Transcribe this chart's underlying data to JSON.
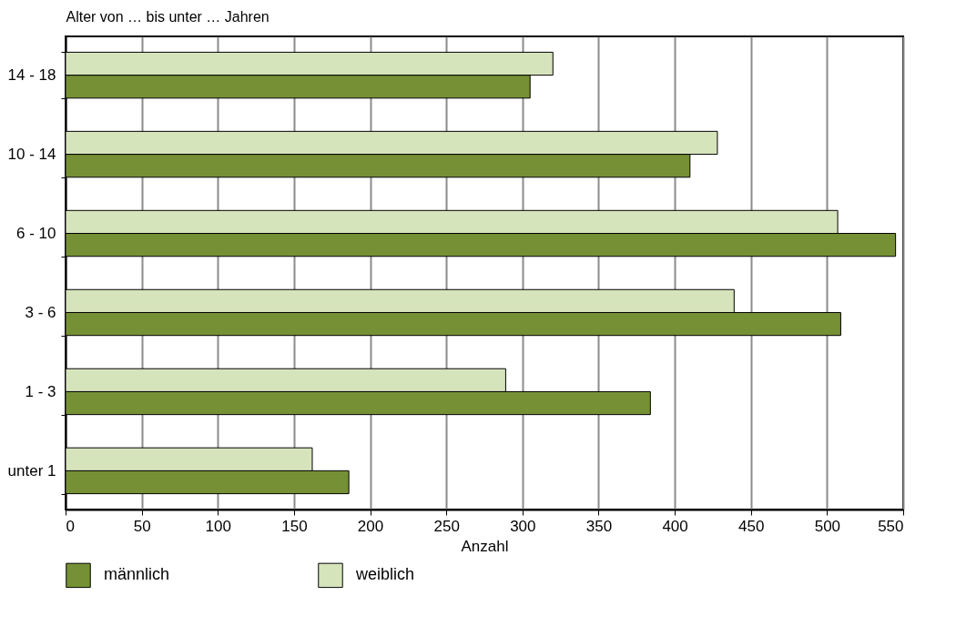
{
  "chart_data": {
    "type": "bar",
    "orientation": "horizontal",
    "ylabel": "Alter von … bis unter … Jahren",
    "xlabel": "Anzahl",
    "categories": [
      "14 - 18",
      "10 - 14",
      "6 - 10",
      "3 - 6",
      "1 - 3",
      "unter 1"
    ],
    "series": [
      {
        "name": "männlich",
        "color": "#769135",
        "values": [
          305,
          410,
          545,
          509,
          384,
          186
        ]
      },
      {
        "name": "weiblich",
        "color": "#d6e4bc",
        "values": [
          320,
          428,
          507,
          439,
          289,
          162
        ]
      }
    ],
    "xlim": [
      0,
      550
    ],
    "xticks": [
      0,
      50,
      100,
      150,
      200,
      250,
      300,
      350,
      400,
      450,
      500,
      550
    ],
    "grid": "x",
    "legend": "bottom"
  }
}
